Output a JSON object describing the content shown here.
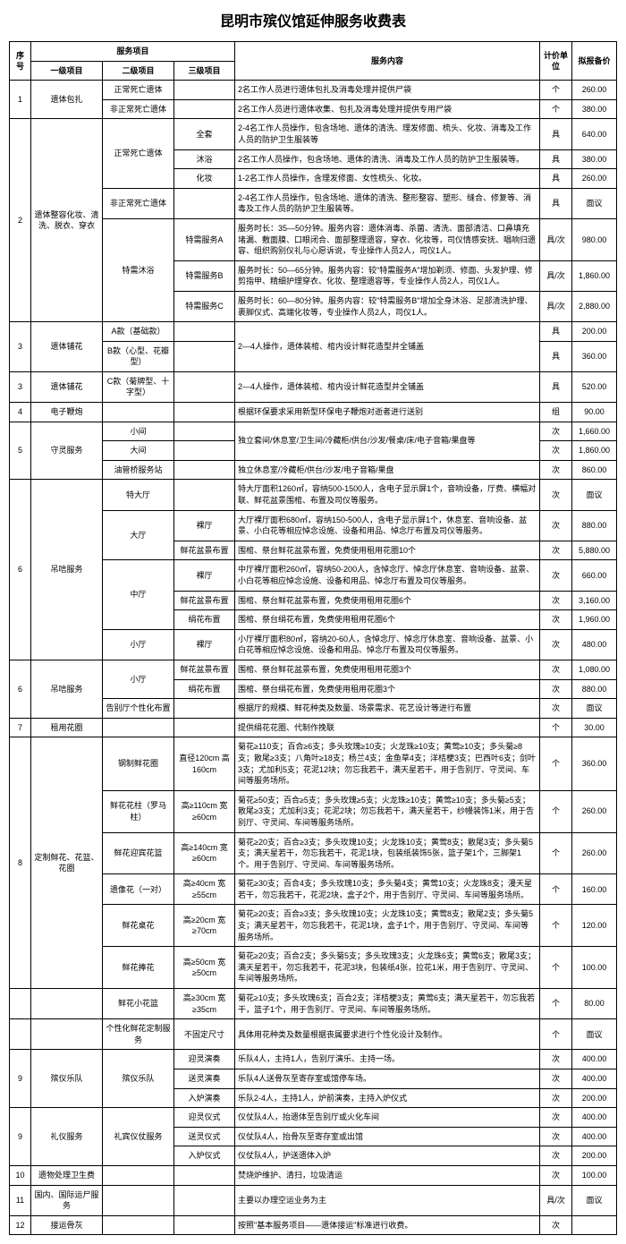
{
  "title": "昆明市殡仪馆延伸服务收费表",
  "headers": {
    "seq": "序号",
    "service": "服务项目",
    "l1": "一级项目",
    "l2": "二级项目",
    "l3": "三级项目",
    "content": "服务内容",
    "unit": "计价单位",
    "price": "拟报备价"
  },
  "rows": [
    {
      "seq": "1",
      "l1": "遗体包扎",
      "l2": "正常死亡遗体",
      "l3": "",
      "content": "2名工作人员进行遗体包扎及消毒处理并提供尸袋",
      "unit": "个",
      "price": "260.00",
      "l1span": 2,
      "seqspan": 2
    },
    {
      "l2": "非正常死亡遗体",
      "l3": "",
      "content": "2名工作人员进行遗体收集、包扎及消毒处理并提供专用尸袋",
      "unit": "个",
      "price": "380.00"
    },
    {
      "seq": "2",
      "l1": "遗体整容化妆、清洗、脱衣、穿衣",
      "l2": "正常死亡遗体",
      "l3": "全套",
      "content": "2-4名工作人员操作，包含场地、遗体的清洗、理发修面、梳头、化妆、消毒及工作人员的防护卫生服装等",
      "unit": "具",
      "price": "640.00",
      "l1span": 7,
      "seqspan": 7,
      "l2span": 3
    },
    {
      "l3": "沐浴",
      "content": "2名工作人员操作，包含场地、遗体的清洗、消毒及工作人员的防护卫生服装等。",
      "unit": "具",
      "price": "380.00"
    },
    {
      "l3": "化妆",
      "content": "1-2名工作人员操作，含理发修面、女性梳头、化妆。",
      "unit": "具",
      "price": "260.00"
    },
    {
      "l2": "非正常死亡遗体",
      "l3": "",
      "content": "2-4名工作人员操作，包含场地、遗体的清洗、整形整容、塑形、缝合、修复等、消毒及工作人员的防护卫生服装等。",
      "unit": "具",
      "price": "面议"
    },
    {
      "l2": "特需沐浴",
      "l3": "特需服务A",
      "content": "服务时长：35—50分钟。服务内容：遗体消毒、杀菌、清洗、面部清洁、口鼻填充堵漏、敷面膜、口眼闭合、面部整理遗容，穿衣、化妆等，司仪情感安抚、唱响归遗容、组织购别仪礼与心愿诉说，专业操作人员2人，司仪1人。",
      "unit": "具/次",
      "price": "980.00",
      "l2span": 3
    },
    {
      "l3": "特需服务B",
      "content": "服务时长：50—65分钟。服务内容：较\"特需服务A\"增加剃须、修面、头发护理、修剪指甲、精细护理穿衣、化妆、整理遗容等，专业操作人员2人，司仪1人。",
      "unit": "具/次",
      "price": "1,860.00"
    },
    {
      "l3": "特需服务C",
      "content": "服务时长：60—80分钟。服务内容：较\"特需服务B\"增加全身沐浴、足部清洗护理、裹脚仪式、高端化妆等，专业操作人员2人，司仪1人。",
      "unit": "具/次",
      "price": "2,880.00"
    },
    {
      "seq": "3",
      "l1": "遗体铺花",
      "l2": "A款（基础款）",
      "l3": "",
      "content": "2—4人操作，遗体装棺、棺内设计鲜花造型并全铺盖",
      "unit": "具",
      "price": "200.00",
      "l1span": 2,
      "seqspan": 2,
      "cspan": 2
    },
    {
      "l2": "B款（心型、花瓣型）",
      "l3": "",
      "unit": "具",
      "price": "360.00"
    },
    {
      "seq": "3",
      "l1": "遗体铺花",
      "l2": "C款（菊牌型、十字型）",
      "l3": "",
      "content": "2—4人操作，遗体装棺、棺内设计鲜花造型并全铺盖",
      "unit": "具",
      "price": "520.00"
    },
    {
      "seq": "4",
      "l1": "电子鞭炮",
      "l2": "",
      "l3": "",
      "content": "根据环保要求采用新型环保电子鞭炮对逝者进行送别",
      "unit": "组",
      "price": "90.00"
    },
    {
      "seq": "5",
      "l1": "守灵服务",
      "l2": "小间",
      "l3": "",
      "content": "独立套间/休息室/卫生间/冷藏柜/供台/沙发/餐桌/床/电子音箱/果盘等",
      "unit": "次",
      "price": "1,660.00",
      "l1span": 3,
      "seqspan": 3,
      "cspan": 2
    },
    {
      "l2": "大间",
      "l3": "",
      "unit": "次",
      "price": "1,860.00"
    },
    {
      "l2": "油管桥服务站",
      "l3": "",
      "content": "独立休息室/冷藏柜/供台/沙发/电子音箱/果盘",
      "unit": "次",
      "price": "860.00"
    },
    {
      "seq": "6",
      "l1": "吊唁服务",
      "l2": "特大厅",
      "l3": "",
      "content": "特大厅面积1260㎡，容纳500-1500人，含电子显示屏1个，音响设备，厅费、横幅对联、鲜花盆景围棺、布置及司仪等服务。",
      "unit": "次",
      "price": "面议",
      "l1span": 7,
      "seqspan": 7
    },
    {
      "l2": "大厅",
      "l3": "裸厅",
      "content": "大厅裸厅面积680㎡，容纳150-500人，含电子显示屏1个，休息室、音响设备、盆景、小白花等相应悼念设施、设备和用品、悼念厅布置及司仪等服务。",
      "unit": "次",
      "price": "880.00",
      "l2span": 2
    },
    {
      "l3": "鲜花盆景布置",
      "content": "围棺、祭台鲜花盆景布置，免费使用租用花圈10个",
      "unit": "次",
      "price": "5,880.00"
    },
    {
      "l2": "中厅",
      "l3": "裸厅",
      "content": "中厅裸厅面积260㎡，容纳50-200人，含悼念厅、悼念厅休息室、音响设备、盆景、小白花等相应悼念设施、设备和用品、悼念厅布置及司仪等服务。",
      "unit": "次",
      "price": "660.00",
      "l2span": 3
    },
    {
      "l3": "鲜花盆景布置",
      "content": "围棺、祭台鲜花盆景布置，免费使用租用花圈6个",
      "unit": "次",
      "price": "3,160.00"
    },
    {
      "l3": "绢花布置",
      "content": "围棺、祭台绢花布置，免费使用租用花圈6个",
      "unit": "次",
      "price": "1,960.00"
    },
    {
      "l2": "小厅",
      "l3": "裸厅",
      "content": "小厅裸厅面积80㎡，容纳20-60人，含悼念厅、悼念厅休息室、音响设备、盆景、小白花等相应悼念设施、设备和用品、悼念厅布置及司仪等服务。",
      "unit": "次",
      "price": "480.00"
    },
    {
      "seq": "6",
      "l1": "吊唁服务",
      "l2": "小厅",
      "l3": "鲜花盆景布置",
      "content": "围棺、祭台鲜花盆景布置，免费使用租用花圈3个",
      "unit": "次",
      "price": "1,080.00",
      "l1span": 3,
      "seqspan": 3,
      "l2span": 2
    },
    {
      "l3": "绢花布置",
      "content": "围棺、祭台绢花布置，免费使用租用花圈3个",
      "unit": "次",
      "price": "880.00"
    },
    {
      "l2": "告别厅个性化布置",
      "l3": "",
      "content": "根据厅的规模、鲜花种类及数量、场景需求、花艺设计等进行布置",
      "unit": "次",
      "price": "面议"
    },
    {
      "seq": "7",
      "l1": "租用花圈",
      "l2": "",
      "l3": "",
      "content": "提供绢花花圈、代制作挽联",
      "unit": "个",
      "price": "30.00"
    },
    {
      "seq": "8",
      "l1": "定制鲜花、花篮、花圈",
      "l2": "钢制鲜花圈",
      "l3": "直径120cm 高160cm",
      "content": "菊花≥110支；百合≥6支；多头玫瑰≥10支；火龙珠≥10支；黄莺≥10支；多头菊≥8支；散尾≥3支；八角叶≥18支；杨兰4支；金鱼草4支；洋桔梗3支；巴西叶6支；剑叶3支；尤加利5支；花泥12块；勿忘我若干，满天星若干，用于告别厅、守灵间、车间等服务场所。",
      "unit": "个",
      "price": "360.00",
      "l1span": 6,
      "seqspan": 6
    },
    {
      "l2": "鲜花花柱（罗马柱）",
      "l3": "高≥110cm 宽≥60cm",
      "content": "菊花≥50支；百合≥5支；多头玫瑰≥5支；火龙珠≥10支；黄莺≥10支；多头菊≥5支；散尾≥3支；尤加利3支；花泥2块；勿忘我若干，满天星若干，纱幔装饰1米，用于告别厅、守灵间、车间等服务场所。",
      "unit": "个",
      "price": "260.00"
    },
    {
      "l2": "鲜花迎宾花篮",
      "l3": "高≥140cm 宽≥60cm",
      "content": "菊花≥20支；百合≥3支；多头玫瑰10支；火龙珠10支；黄莺8支；散尾3支；多头菊5支；满天星若干，勿忘我若干，花泥1块，包装纸装饰5张，篮子架1个，三脚架1个。用于告别厅、守灵间、车间等服务场所。",
      "unit": "个",
      "price": "260.00"
    },
    {
      "l2": "遗像花（一对）",
      "l3": "高≥40cm 宽≥55cm",
      "content": "菊花≥30支；百合4支；多头玫瑰10支；多头菊4支；黄莺10支；火龙珠8支；漫天星若干，勿忘我若干，花泥2块，盒子2个，用于告别厅、守灵间、车间等服务场所。",
      "unit": "个",
      "price": "160.00"
    },
    {
      "l2": "鲜花桌花",
      "l3": "高≥20cm 宽≥70cm",
      "content": "菊花≥20支；百合≥3支；多头玫瑰10支；火龙珠10支；黄莺8支；散尾2支；多头菊5支；满天星若干，勿忘我若干，花泥1块，盒子1个，用于告别厅、守灵间、车间等服务场所。",
      "unit": "个",
      "price": "120.00"
    },
    {
      "seq": "8",
      "l1": "定制鲜花、花篮、花圈",
      "l2": "鲜花捧花",
      "l3": "高≥50cm 宽≥50cm",
      "content": "菊花≥20支；百合2支；多头菊5支；多头玫瑰3支；火龙珠6支；黄莺6支；散尾3支；满天星若干，勿忘我若干，花泥3块，包装纸4张，拉花1米，用于告别厅、守灵间、车间等服务场所。",
      "unit": "个",
      "price": "100.00",
      "l1span": 3,
      "seqspan": 3
    },
    {
      "l2": "鲜花小花篮",
      "l3": "高≥30cm 宽≥35cm",
      "content": "菊花≥10支；多头玫瑰6支；百合2支；洋桔梗3支；黄莺6支；满天星若干，勿忘我若干，篮子1个，用于告别厅、守灵间、车间等服务场所。",
      "unit": "个",
      "price": "80.00"
    },
    {
      "l2": "个性化鲜花定制服务",
      "l3": "不固定尺寸",
      "content": "具体用花种类及数量根据丧属要求进行个性化设计及制作。",
      "unit": "个",
      "price": "面议"
    },
    {
      "seq": "9",
      "l1": "殡仪乐队",
      "l2": "殡仪乐队",
      "l3": "迎灵演奏",
      "content": "乐队4人，主持1人，告别厅演乐、主持一场。",
      "unit": "次",
      "price": "400.00",
      "l1span": 3,
      "seqspan": 3,
      "l2span": 3
    },
    {
      "l3": "送灵演奏",
      "content": "乐队4人送骨灰至寄存室或馆停车场。",
      "unit": "次",
      "price": "400.00"
    },
    {
      "l3": "入炉演奏",
      "content": "乐队2-4人，主持1人，炉前演奏，主持入炉仪式",
      "unit": "次",
      "price": "200.00"
    },
    {
      "seq": "9",
      "l1": "礼仪服务",
      "l2": "礼宾仪仗服务",
      "l3": "迎灵仪式",
      "content": "仪仗队4人，抬遗体至告别厅或火化车间",
      "unit": "次",
      "price": "400.00",
      "l1span": 3,
      "seqspan": 3,
      "l2span": 3
    },
    {
      "l3": "送灵仪式",
      "content": "仪仗队4人，抬骨灰至寄存室或出馆",
      "unit": "次",
      "price": "400.00"
    },
    {
      "l3": "入炉仪式",
      "content": "仪仗队4人，护送遗体入炉",
      "unit": "次",
      "price": "200.00"
    },
    {
      "seq": "10",
      "l1": "遗物处理卫生费",
      "l2": "",
      "l3": "",
      "content": "焚烧炉维护、清扫，垃圾清运",
      "unit": "次",
      "price": "100.00"
    },
    {
      "seq": "11",
      "l1": "国内、国际运尸服务",
      "l2": "",
      "l3": "",
      "content": "主要以办理空运业务为主",
      "unit": "具/次",
      "price": "面议"
    },
    {
      "seq": "12",
      "l1": "接运骨灰",
      "l2": "",
      "l3": "",
      "content": "按照\"基本服务项目——遗体接运\"标准进行收费。",
      "unit": "次",
      "price": ""
    }
  ]
}
